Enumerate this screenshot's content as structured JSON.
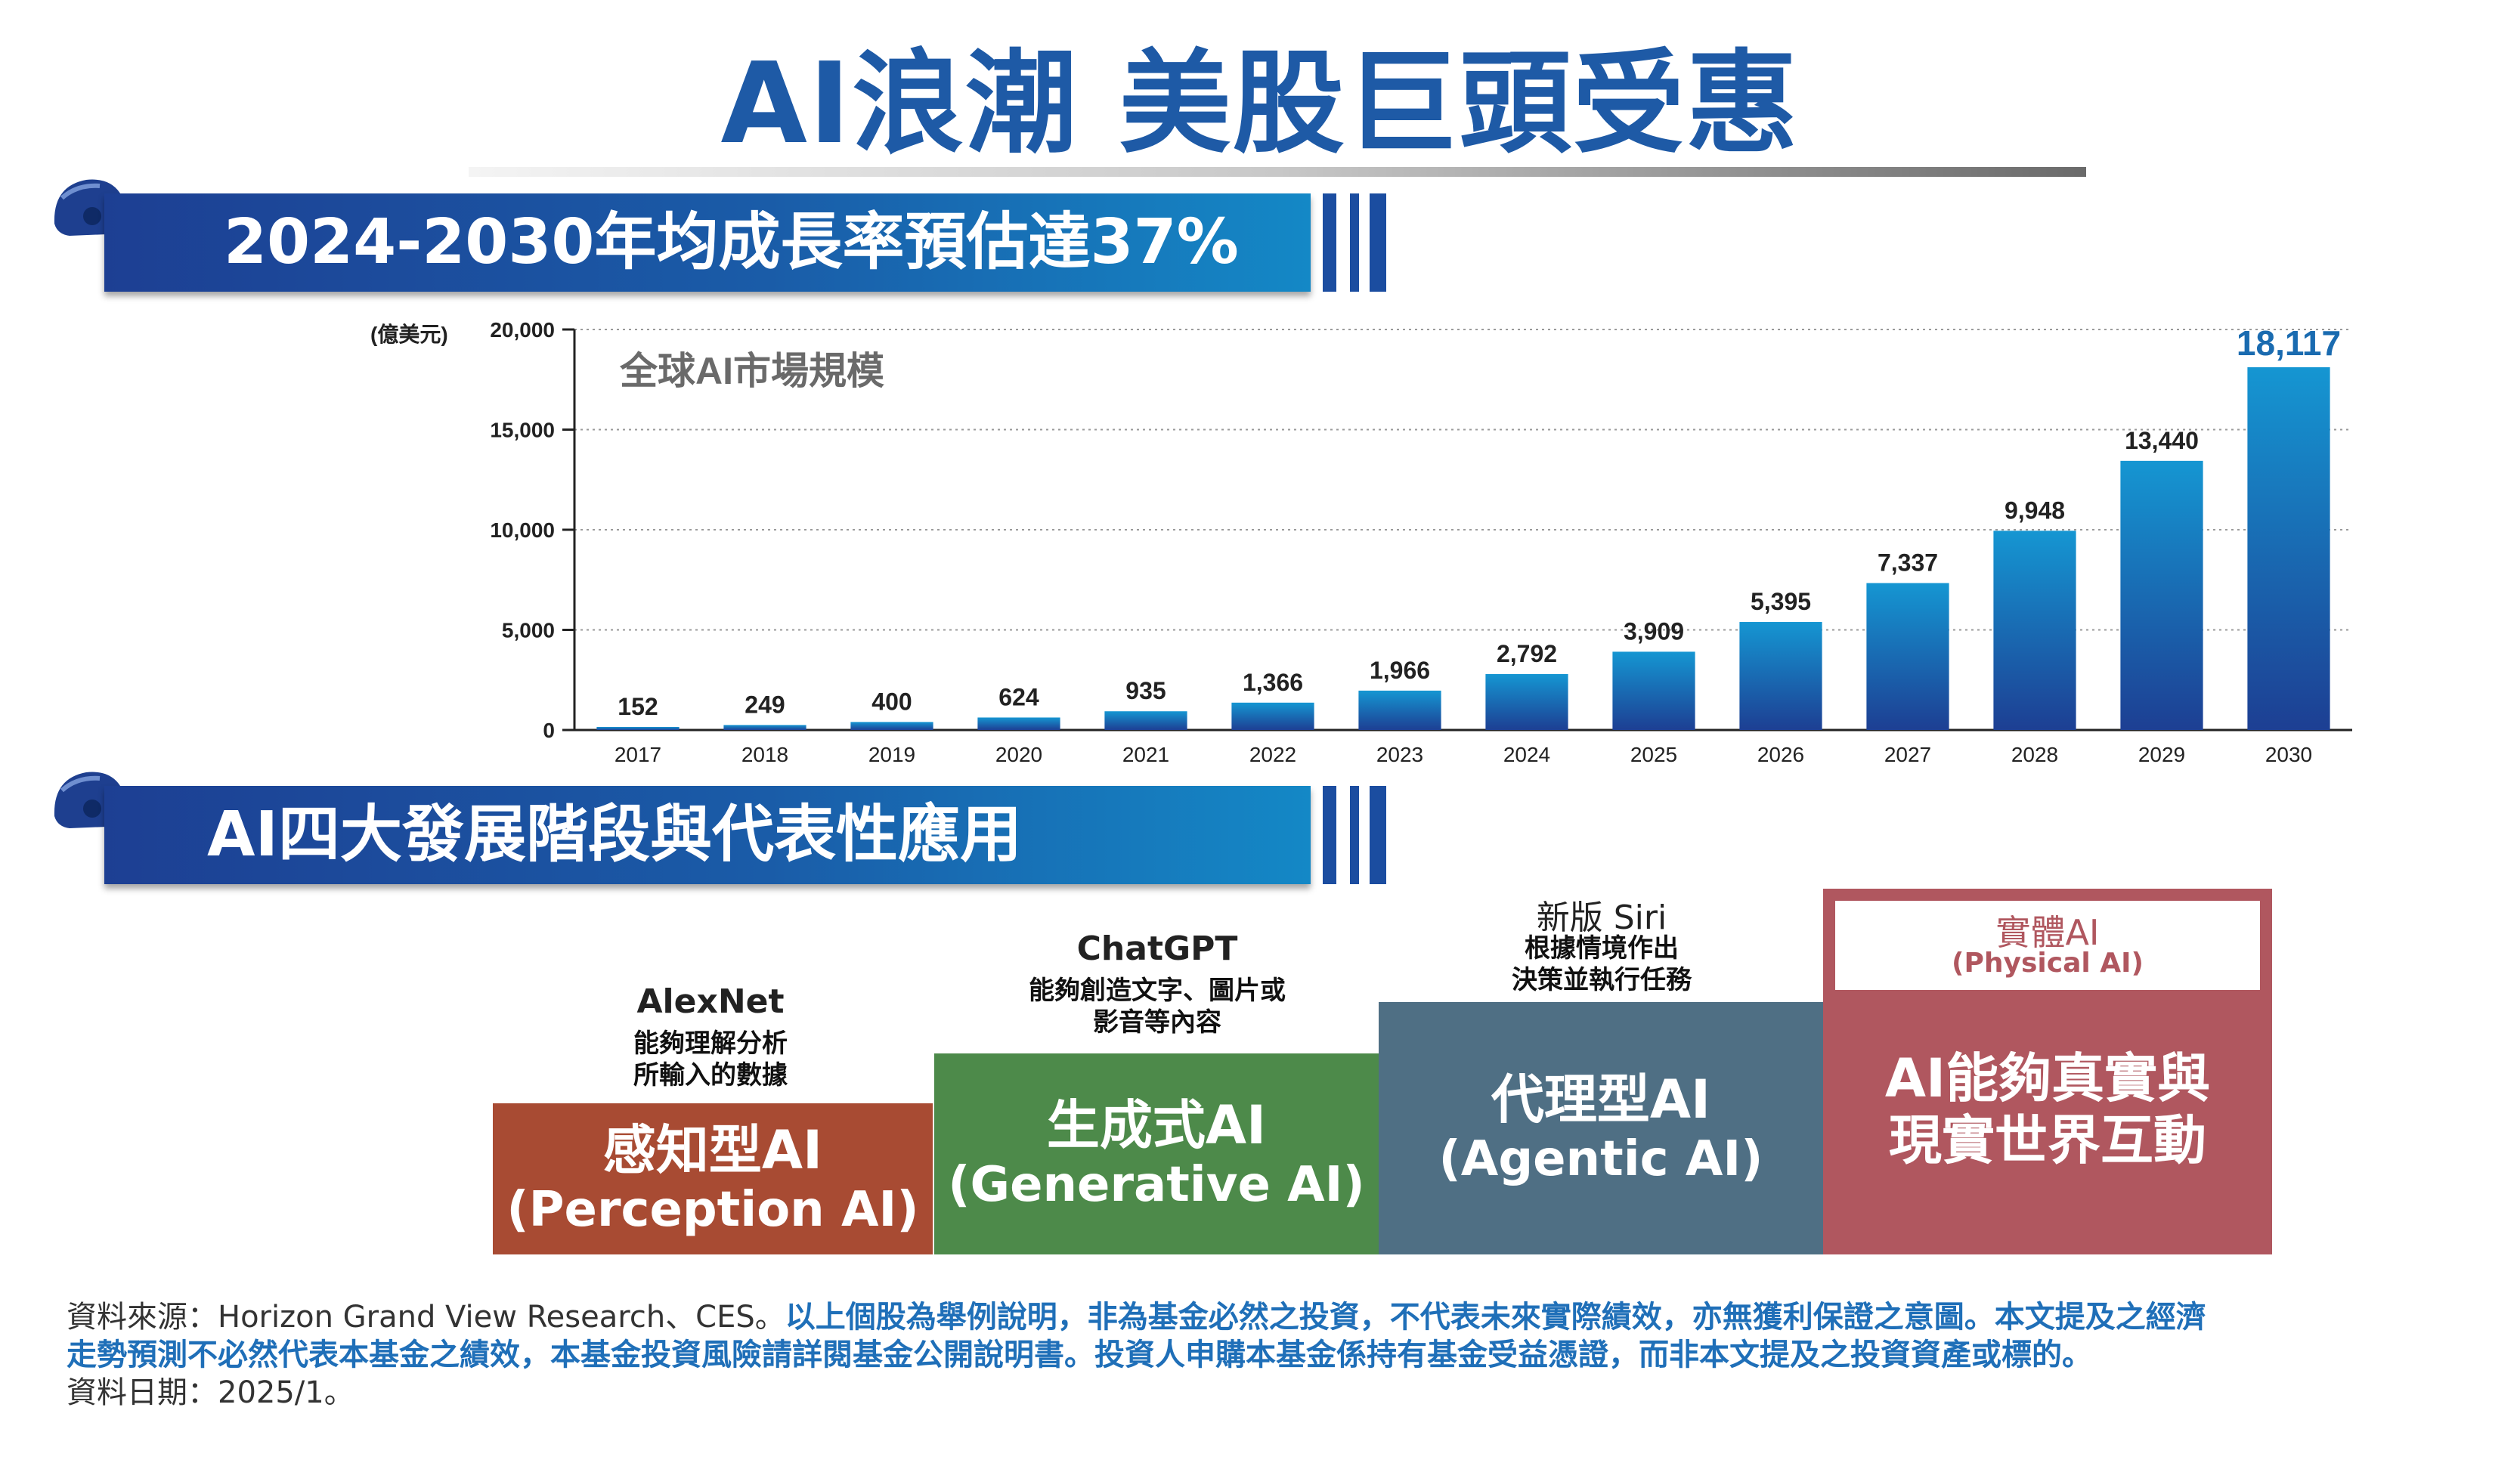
{
  "title": "AI浪潮 美股巨頭受惠",
  "banner1": {
    "text": "2024-2030年均成長率預估達37%"
  },
  "banner2": {
    "text": "AI四大發展階段與代表性應用"
  },
  "chart_data": {
    "type": "bar",
    "title": "全球AI市場規模",
    "unit_label": "(億美元)",
    "categories": [
      "2017",
      "2018",
      "2019",
      "2020",
      "2021",
      "2022",
      "2023",
      "2024",
      "2025",
      "2026",
      "2027",
      "2028",
      "2029",
      "2030"
    ],
    "values": [
      152,
      249,
      400,
      624,
      935,
      1366,
      1966,
      2792,
      3909,
      5395,
      7337,
      9948,
      13440,
      18117
    ],
    "value_labels": [
      "152",
      "249",
      "400",
      "624",
      "935",
      "1,366",
      "1,966",
      "2,792",
      "3,909",
      "5,395",
      "7,337",
      "9,948",
      "13,440",
      "18,117"
    ],
    "ylim": [
      0,
      20000
    ],
    "y_ticks": [
      0,
      5000,
      10000,
      15000,
      20000
    ],
    "y_tick_labels": [
      "0",
      "5,000",
      "10,000",
      "15,000",
      "20,000"
    ],
    "grid": true,
    "bar_color": "#1a6bb0",
    "highlight_label_color": "#1a6bb0"
  },
  "stages": [
    {
      "app_title": "AlexNet",
      "app_desc": [
        "能夠理解分析",
        "所輸入的數據"
      ],
      "name": "感知型AI",
      "sub": "(Perception AI)",
      "color": "#a84b33",
      "title_color": "#a84b33"
    },
    {
      "app_title": "ChatGPT",
      "app_desc": [
        "能夠創造文字、圖片或",
        "影音等內容"
      ],
      "name": "生成式AI",
      "sub": "(Generative AI)",
      "color": "#4d8a4a",
      "title_color": "#4d8a4a"
    },
    {
      "app_title": "新版 Siri",
      "app_desc": [
        "根據情境作出",
        "決策並執行任務"
      ],
      "name": "代理型AI",
      "sub": "(Agentic AI)",
      "color": "#4f6f84",
      "title_color": "#4f6f84"
    },
    {
      "app_title": "實體AI",
      "app_sub": "(Physical AI)",
      "name": "AI能夠真實與",
      "sub": "現實世界互動",
      "color": "#b0575f",
      "title_color": "#b0575f"
    }
  ],
  "footer": {
    "line1_gray": "資料來源：Horizon Grand View Research、CES。",
    "line1_blue": "以上個股為舉例說明，非為基金必然之投資，不代表未來實際績效，亦無獲利保證之意圖。本文提及之經濟",
    "line2_blue": "走勢預測不必然代表本基金之績效，本基金投資風險請詳閱基金公開說明書。投資人申購本基金係持有基金受益憑證，而非本文提及之投資資產或標的。",
    "line3_gray": "資料日期：2025/1。"
  }
}
